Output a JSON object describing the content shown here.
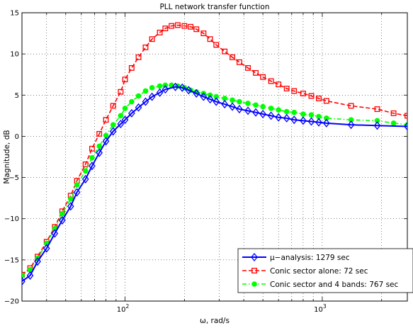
{
  "chart_data": {
    "type": "line",
    "title": "PLL network transfer function",
    "xlabel": "ω, rad/s",
    "ylabel": "Magnitude, dB",
    "xscale": "log",
    "xlim": [
      30,
      2700
    ],
    "ylim": [
      -20,
      15
    ],
    "yticks": [
      "−20",
      "−15",
      "−10",
      "−5",
      "0",
      "5",
      "10",
      "15"
    ],
    "xticks": [
      {
        "base": "10",
        "exp": "2"
      },
      {
        "base": "10",
        "exp": "3"
      }
    ],
    "grid": true,
    "legend_position": "bottom-right",
    "series": [
      {
        "name": "μ−analysis: 1279 sec",
        "color": "#0000ff",
        "linestyle": "solid",
        "marker": "diamond",
        "x": [
          30,
          33,
          36,
          40,
          44,
          48,
          53,
          57,
          63,
          68,
          74,
          80,
          87,
          95,
          100,
          108,
          117,
          127,
          137,
          150,
          160,
          180,
          195,
          210,
          230,
          250,
          270,
          290,
          320,
          350,
          380,
          420,
          460,
          500,
          550,
          600,
          660,
          720,
          800,
          880,
          960,
          1050,
          1400,
          1900,
          2700
        ],
        "y": [
          -17.6,
          -16.9,
          -15.2,
          -13.6,
          -11.8,
          -10.2,
          -8.5,
          -6.8,
          -5.2,
          -3.6,
          -2.0,
          -0.6,
          0.6,
          1.5,
          2.0,
          2.8,
          3.5,
          4.2,
          4.8,
          5.3,
          5.7,
          6.0,
          5.9,
          5.6,
          5.2,
          4.8,
          4.5,
          4.2,
          3.9,
          3.6,
          3.3,
          3.1,
          2.9,
          2.7,
          2.5,
          2.3,
          2.2,
          2.0,
          1.9,
          1.8,
          1.7,
          1.6,
          1.4,
          1.3,
          1.2
        ]
      },
      {
        "name": "Conic sector alone: 72 sec",
        "color": "#ff0000",
        "linestyle": "dashed",
        "marker": "square",
        "x": [
          30,
          33,
          36,
          40,
          44,
          48,
          53,
          57,
          63,
          68,
          74,
          80,
          87,
          95,
          100,
          108,
          117,
          127,
          137,
          150,
          160,
          172,
          185,
          200,
          215,
          230,
          250,
          270,
          290,
          320,
          350,
          380,
          420,
          460,
          500,
          550,
          600,
          660,
          720,
          800,
          880,
          960,
          1050,
          1400,
          1900,
          2300,
          2700
        ],
        "y": [
          -16.8,
          -16.0,
          -14.6,
          -12.8,
          -11.0,
          -9.1,
          -7.2,
          -5.4,
          -3.4,
          -1.5,
          0.3,
          2.0,
          3.7,
          5.4,
          6.9,
          8.3,
          9.6,
          10.8,
          11.8,
          12.6,
          13.1,
          13.4,
          13.5,
          13.4,
          13.3,
          13.0,
          12.5,
          11.8,
          11.1,
          10.3,
          9.6,
          9.0,
          8.3,
          7.7,
          7.2,
          6.7,
          6.3,
          5.8,
          5.5,
          5.2,
          4.9,
          4.6,
          4.3,
          3.7,
          3.3,
          2.8,
          2.5
        ]
      },
      {
        "name": "Conic sector and 4 bands: 767 sec",
        "color": "#00ff00",
        "linestyle": "dashdot",
        "marker": "circle",
        "x": [
          30,
          33,
          36,
          40,
          44,
          48,
          53,
          57,
          63,
          68,
          74,
          80,
          87,
          95,
          100,
          108,
          117,
          127,
          137,
          150,
          160,
          172,
          185,
          200,
          215,
          230,
          250,
          270,
          290,
          320,
          350,
          380,
          420,
          460,
          500,
          550,
          600,
          660,
          720,
          800,
          880,
          960,
          1050,
          1400,
          1900,
          2300,
          2700
        ],
        "y": [
          -16.9,
          -16.2,
          -14.8,
          -13.0,
          -11.2,
          -9.4,
          -7.6,
          -5.9,
          -4.2,
          -2.6,
          -1.2,
          0.1,
          1.4,
          2.5,
          3.4,
          4.2,
          4.9,
          5.5,
          5.9,
          6.1,
          6.2,
          6.2,
          6.1,
          5.9,
          5.6,
          5.4,
          5.2,
          5.0,
          4.8,
          4.6,
          4.4,
          4.2,
          4.0,
          3.8,
          3.6,
          3.4,
          3.2,
          3.0,
          2.9,
          2.7,
          2.6,
          2.4,
          2.2,
          2.0,
          1.9,
          1.6,
          1.4
        ]
      }
    ]
  }
}
